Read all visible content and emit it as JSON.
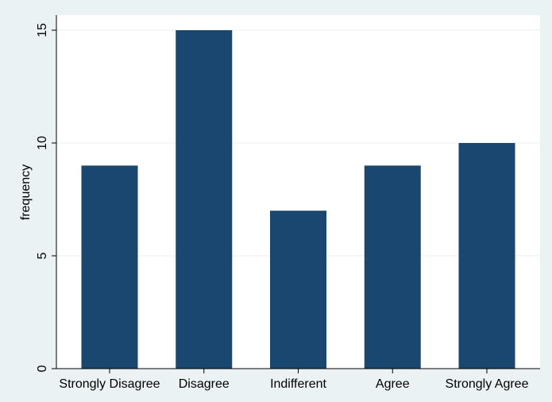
{
  "chart_data": {
    "type": "bar",
    "title": "",
    "xlabel": "",
    "ylabel": "frequency",
    "categories": [
      "Strongly Disagree",
      "Disagree",
      "Indifferent",
      "Agree",
      "Strongly Agree"
    ],
    "values": [
      9,
      15,
      7,
      9,
      10
    ],
    "ylim": [
      0,
      15
    ],
    "yticks": [
      0,
      5,
      10,
      15
    ],
    "grid": true,
    "colors": {
      "bar": "#1a476f",
      "plot_background": "#ffffff",
      "outer_background": "#eaf2f3",
      "gridline": "#eaf2f3",
      "axis": "#000000"
    }
  }
}
